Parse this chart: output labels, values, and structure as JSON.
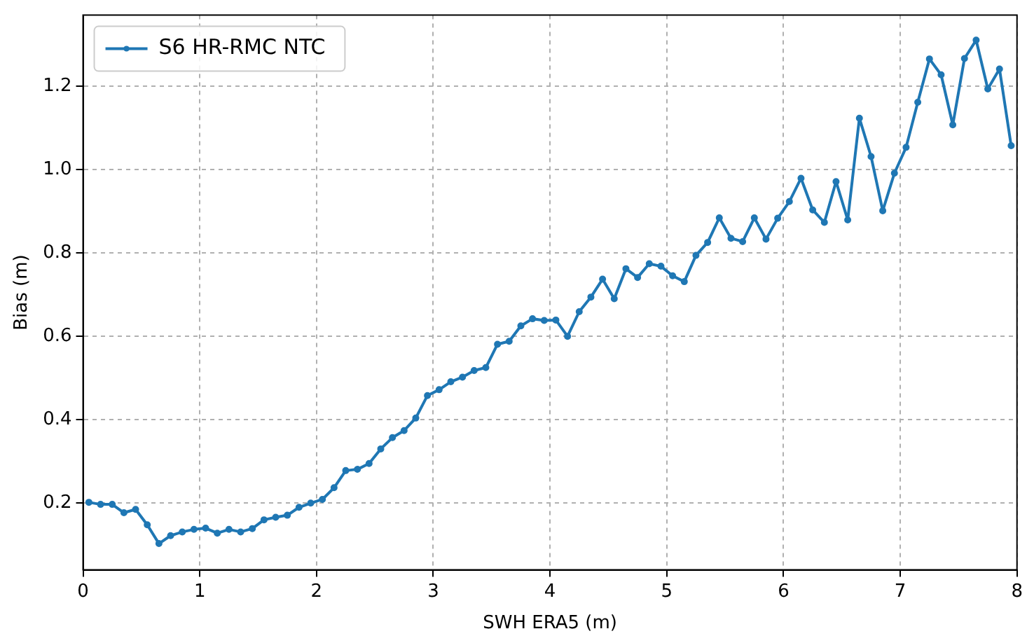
{
  "chart_data": {
    "type": "line",
    "xlabel": "SWH ERA5 (m)",
    "ylabel": "Bias (m)",
    "legend": "top left",
    "grid": true,
    "marker": "circle",
    "line_style": "solid",
    "xlim": [
      0,
      8
    ],
    "xticks": [
      0,
      1,
      2,
      3,
      4,
      5,
      6,
      7,
      8
    ],
    "ylim": [
      0.04,
      1.37
    ],
    "yticks": [
      {
        "value": 0.2,
        "label": "0.2"
      },
      {
        "value": 0.4,
        "label": "0.4"
      },
      {
        "value": 0.6,
        "label": "0.6"
      },
      {
        "value": 0.8,
        "label": "0.8"
      },
      {
        "value": 1.0,
        "label": "1.0"
      },
      {
        "value": 1.2,
        "label": "1.2"
      }
    ],
    "x": [
      0.05,
      0.15,
      0.25,
      0.35,
      0.45,
      0.55,
      0.65,
      0.75,
      0.85,
      0.95,
      1.05,
      1.15,
      1.25,
      1.35,
      1.45,
      1.55,
      1.65,
      1.75,
      1.85,
      1.95,
      2.05,
      2.15,
      2.25,
      2.35,
      2.45,
      2.55,
      2.65,
      2.75,
      2.85,
      2.95,
      3.05,
      3.15,
      3.25,
      3.35,
      3.45,
      3.55,
      3.65,
      3.75,
      3.85,
      3.95,
      4.05,
      4.15,
      4.25,
      4.35,
      4.45,
      4.55,
      4.65,
      4.75,
      4.85,
      4.95,
      5.05,
      5.15,
      5.25,
      5.35,
      5.45,
      5.55,
      5.65,
      5.75,
      5.85,
      5.95,
      6.05,
      6.15,
      6.25,
      6.35,
      6.45,
      6.55,
      6.65,
      6.75,
      6.85,
      6.95,
      7.05,
      7.15,
      7.25,
      7.35,
      7.45,
      7.55,
      7.65,
      7.75,
      7.85,
      7.95
    ],
    "series": [
      {
        "name": "S6 HR-RMC NTC",
        "color": "#1f77b4",
        "values": [
          0.202,
          0.197,
          0.197,
          0.177,
          0.185,
          0.148,
          0.103,
          0.122,
          0.131,
          0.137,
          0.14,
          0.128,
          0.137,
          0.131,
          0.139,
          0.16,
          0.166,
          0.171,
          0.19,
          0.2,
          0.209,
          0.237,
          0.278,
          0.281,
          0.295,
          0.33,
          0.357,
          0.374,
          0.404,
          0.458,
          0.472,
          0.491,
          0.502,
          0.518,
          0.525,
          0.581,
          0.588,
          0.625,
          0.642,
          0.638,
          0.639,
          0.6,
          0.659,
          0.694,
          0.737,
          0.69,
          0.762,
          0.741,
          0.774,
          0.768,
          0.745,
          0.731,
          0.794,
          0.825,
          0.884,
          0.835,
          0.827,
          0.884,
          0.833,
          0.883,
          0.923,
          0.979,
          0.903,
          0.873,
          0.971,
          0.879,
          1.123,
          1.031,
          0.901,
          0.991,
          1.053,
          1.161,
          1.265,
          1.227,
          1.107,
          1.266,
          1.31,
          1.193,
          1.241,
          1.057
        ]
      }
    ]
  }
}
